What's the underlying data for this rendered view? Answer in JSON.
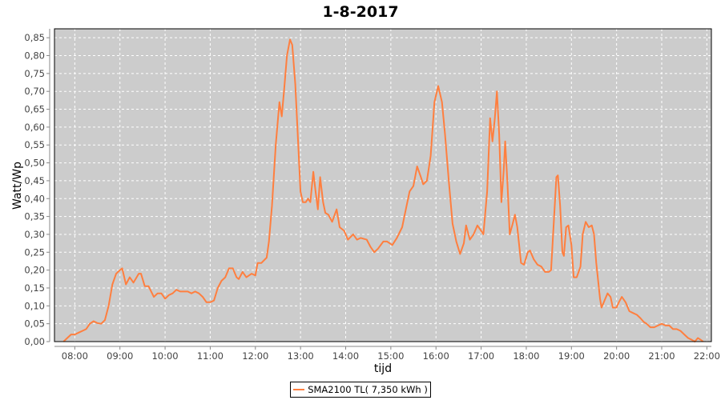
{
  "chart_data": {
    "type": "line",
    "title": "1-8-2017",
    "xlabel": "tijd",
    "ylabel": "Watt/Wp",
    "ylim": [
      0,
      0.875
    ],
    "xlim": [
      "07:33",
      "22:06"
    ],
    "grid": true,
    "legend_placement": "bottom",
    "plot_background": "#cccccc",
    "y_ticks": [
      "0,00",
      "0,05",
      "0,10",
      "0,15",
      "0,20",
      "0,25",
      "0,30",
      "0,35",
      "0,40",
      "0,45",
      "0,50",
      "0,55",
      "0,60",
      "0,65",
      "0,70",
      "0,75",
      "0,80",
      "0,85"
    ],
    "x_ticks": [
      "08:00",
      "09:00",
      "10:00",
      "11:00",
      "12:00",
      "13:00",
      "14:00",
      "15:00",
      "16:00",
      "17:00",
      "18:00",
      "19:00",
      "20:00",
      "21:00",
      "22:00"
    ],
    "series": [
      {
        "name": "SMA2100 TL( 7,350 kWh )",
        "color": "#ff7f3f",
        "x": [
          "07:45",
          "07:50",
          "07:55",
          "08:00",
          "08:05",
          "08:10",
          "08:15",
          "08:20",
          "08:25",
          "08:30",
          "08:35",
          "08:40",
          "08:45",
          "08:50",
          "08:55",
          "09:00",
          "09:03",
          "09:08",
          "09:13",
          "09:18",
          "09:25",
          "09:28",
          "09:33",
          "09:38",
          "09:45",
          "09:50",
          "09:55",
          "10:00",
          "10:05",
          "10:10",
          "10:15",
          "10:20",
          "10:30",
          "10:35",
          "10:40",
          "10:45",
          "10:50",
          "10:55",
          "11:00",
          "11:05",
          "11:10",
          "11:15",
          "11:20",
          "11:25",
          "11:30",
          "11:35",
          "11:38",
          "11:43",
          "11:48",
          "11:55",
          "12:00",
          "12:03",
          "12:08",
          "12:15",
          "12:18",
          "12:22",
          "12:27",
          "12:32",
          "12:35",
          "12:38",
          "12:42",
          "12:46",
          "12:49",
          "12:53",
          "12:57",
          "13:00",
          "13:03",
          "13:07",
          "13:10",
          "13:13",
          "13:17",
          "13:20",
          "13:23",
          "13:26",
          "13:30",
          "13:33",
          "13:37",
          "13:42",
          "13:48",
          "13:52",
          "13:58",
          "14:03",
          "14:10",
          "14:15",
          "14:20",
          "14:28",
          "14:33",
          "14:38",
          "14:43",
          "14:50",
          "14:55",
          "15:02",
          "15:08",
          "15:15",
          "15:20",
          "15:25",
          "15:30",
          "15:35",
          "15:40",
          "15:43",
          "15:48",
          "15:53",
          "15:58",
          "16:03",
          "16:08",
          "16:12",
          "16:17",
          "16:22",
          "16:27",
          "16:32",
          "16:37",
          "16:40",
          "16:45",
          "16:50",
          "16:55",
          "17:00",
          "17:03",
          "17:08",
          "17:12",
          "17:15",
          "17:18",
          "17:21",
          "17:24",
          "17:27",
          "17:30",
          "17:32",
          "17:35",
          "17:38",
          "17:42",
          "17:45",
          "17:48",
          "17:53",
          "17:57",
          "18:02",
          "18:05",
          "18:10",
          "18:15",
          "18:20",
          "18:25",
          "18:30",
          "18:33",
          "18:37",
          "18:40",
          "18:42",
          "18:45",
          "18:48",
          "18:50",
          "18:53",
          "18:56",
          "19:00",
          "19:03",
          "19:07",
          "19:12",
          "19:15",
          "19:19",
          "19:23",
          "19:27",
          "19:30",
          "19:33",
          "19:38",
          "19:40",
          "19:44",
          "19:48",
          "19:52",
          "19:55",
          "20:00",
          "20:03",
          "20:07",
          "20:12",
          "20:17",
          "20:22",
          "20:27",
          "20:32",
          "20:36",
          "20:40",
          "20:45",
          "20:50",
          "20:55",
          "21:00",
          "21:05",
          "21:10",
          "21:15",
          "21:20",
          "21:25",
          "21:30",
          "21:35",
          "21:40",
          "21:44",
          "21:48",
          "21:52",
          "21:55"
        ],
        "values": [
          0,
          0.01,
          0.02,
          0.02,
          0.025,
          0.03,
          0.035,
          0.05,
          0.057,
          0.052,
          0.05,
          0.06,
          0.1,
          0.16,
          0.19,
          0.2,
          0.205,
          0.16,
          0.18,
          0.165,
          0.19,
          0.19,
          0.155,
          0.155,
          0.125,
          0.135,
          0.135,
          0.12,
          0.13,
          0.135,
          0.145,
          0.14,
          0.14,
          0.135,
          0.14,
          0.135,
          0.125,
          0.11,
          0.11,
          0.115,
          0.15,
          0.17,
          0.18,
          0.205,
          0.205,
          0.18,
          0.175,
          0.195,
          0.18,
          0.19,
          0.185,
          0.22,
          0.22,
          0.235,
          0.28,
          0.38,
          0.55,
          0.67,
          0.63,
          0.7,
          0.8,
          0.845,
          0.83,
          0.72,
          0.55,
          0.42,
          0.39,
          0.39,
          0.4,
          0.39,
          0.475,
          0.42,
          0.37,
          0.46,
          0.39,
          0.36,
          0.355,
          0.335,
          0.37,
          0.32,
          0.31,
          0.285,
          0.3,
          0.285,
          0.29,
          0.285,
          0.265,
          0.25,
          0.26,
          0.28,
          0.28,
          0.27,
          0.29,
          0.32,
          0.37,
          0.42,
          0.435,
          0.49,
          0.46,
          0.44,
          0.45,
          0.52,
          0.67,
          0.715,
          0.67,
          0.58,
          0.45,
          0.33,
          0.28,
          0.245,
          0.275,
          0.325,
          0.285,
          0.3,
          0.325,
          0.31,
          0.3,
          0.42,
          0.625,
          0.56,
          0.62,
          0.7,
          0.58,
          0.39,
          0.48,
          0.56,
          0.44,
          0.3,
          0.33,
          0.355,
          0.32,
          0.22,
          0.215,
          0.25,
          0.255,
          0.23,
          0.215,
          0.21,
          0.195,
          0.195,
          0.2,
          0.35,
          0.46,
          0.465,
          0.38,
          0.25,
          0.24,
          0.32,
          0.325,
          0.27,
          0.18,
          0.18,
          0.21,
          0.3,
          0.335,
          0.32,
          0.325,
          0.3,
          0.22,
          0.12,
          0.095,
          0.115,
          0.135,
          0.125,
          0.095,
          0.095,
          0.11,
          0.125,
          0.11,
          0.085,
          0.08,
          0.075,
          0.065,
          0.055,
          0.05,
          0.04,
          0.04,
          0.045,
          0.05,
          0.045,
          0.045,
          0.035,
          0.035,
          0.03,
          0.02,
          0.01,
          0.005,
          0,
          0.01,
          0.005,
          0
        ]
      }
    ]
  }
}
